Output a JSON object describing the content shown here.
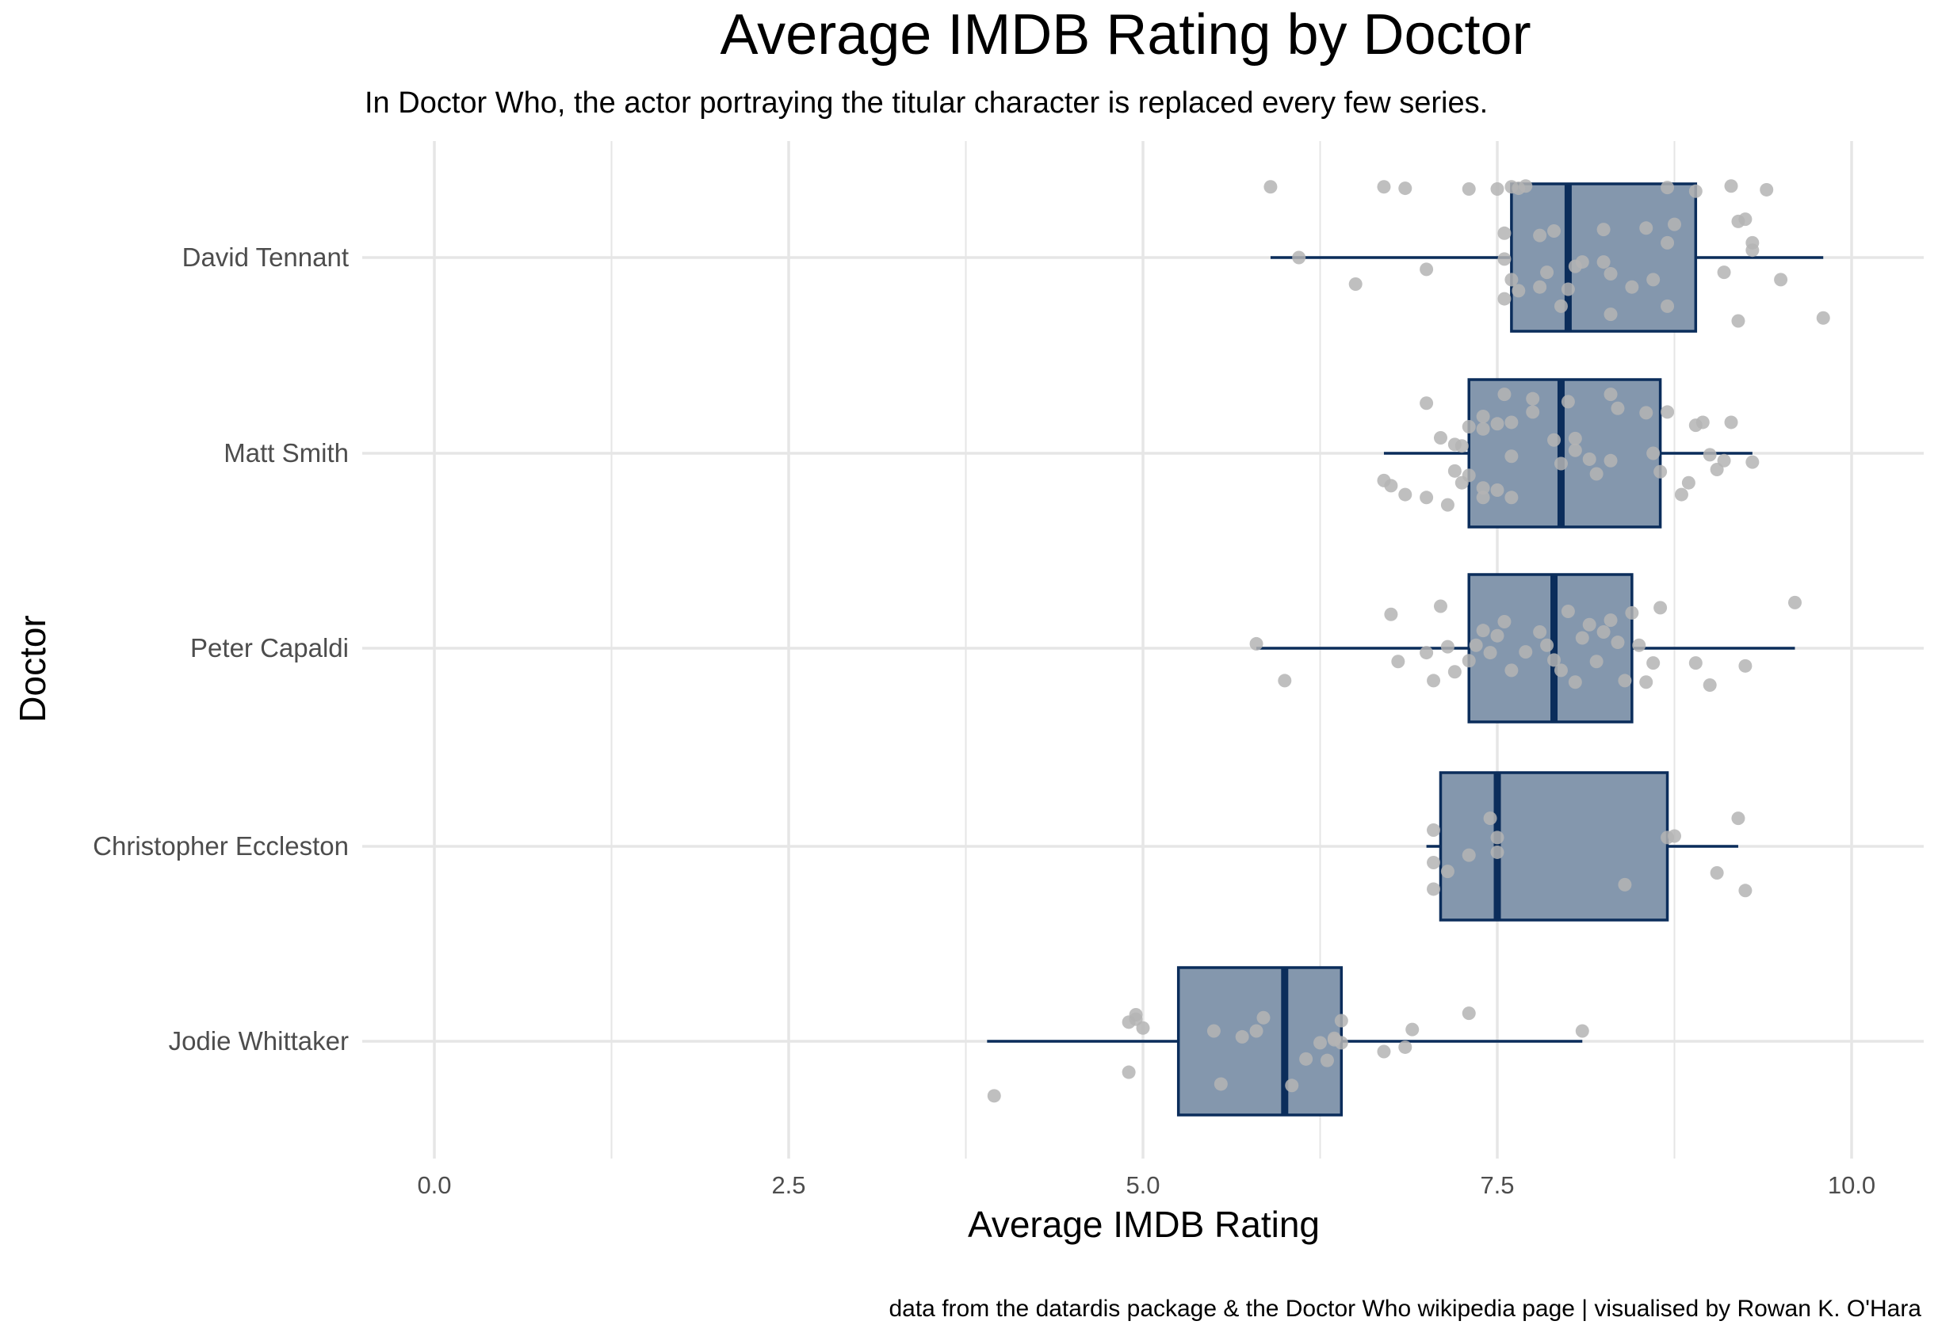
{
  "chart_data": {
    "type": "boxplot",
    "title": "Average IMDB Rating by Doctor",
    "subtitle": "In Doctor Who, the actor portraying the titular character is replaced every few series.",
    "caption": "data from the datardis package & the Doctor Who wikipedia page | visualised by Rowan K. O'Hara",
    "xlabel": "Average IMDB Rating",
    "ylabel": "Doctor",
    "xlim": [
      -0.6,
      10.6
    ],
    "x_ticks": [
      0.0,
      2.5,
      5.0,
      7.5,
      10.0
    ],
    "x_tick_labels": [
      "0.0",
      "2.5",
      "5.0",
      "7.5",
      "10.0"
    ],
    "grid": true,
    "colors": {
      "box_fill": "#8497AD",
      "box_line": "#0B2D5B",
      "points": "#B4B4B4",
      "grid": "#E6E6E6"
    },
    "series": [
      {
        "name": "David Tennant",
        "whisker_low": 5.9,
        "q1": 7.6,
        "median": 8.0,
        "q3": 8.9,
        "whisker_high": 9.8,
        "points": [
          [
            5.9,
            0.96
          ],
          [
            6.7,
            0.96
          ],
          [
            6.85,
            0.94
          ],
          [
            7.3,
            0.93
          ],
          [
            7.5,
            0.93
          ],
          [
            7.6,
            0.96
          ],
          [
            7.65,
            0.94
          ],
          [
            7.7,
            0.97
          ],
          [
            8.7,
            0.95
          ],
          [
            8.9,
            0.9
          ],
          [
            9.15,
            0.97
          ],
          [
            9.4,
            0.92
          ],
          [
            9.2,
            0.49
          ],
          [
            9.25,
            0.52
          ],
          [
            8.75,
            0.45
          ],
          [
            8.55,
            0.4
          ],
          [
            8.25,
            0.38
          ],
          [
            7.9,
            0.36
          ],
          [
            7.55,
            0.33
          ],
          [
            7.8,
            0.3
          ],
          [
            8.7,
            0.2
          ],
          [
            9.3,
            0.2
          ],
          [
            9.3,
            0.1
          ],
          [
            6.1,
            0.0
          ],
          [
            6.5,
            -0.36
          ],
          [
            7.0,
            -0.16
          ],
          [
            7.55,
            -0.02
          ],
          [
            7.6,
            -0.3
          ],
          [
            7.55,
            -0.56
          ],
          [
            7.8,
            -0.4
          ],
          [
            8.25,
            -0.06
          ],
          [
            8.3,
            -0.22
          ],
          [
            8.45,
            -0.4
          ],
          [
            8.6,
            -0.3
          ],
          [
            9.1,
            -0.2
          ],
          [
            9.5,
            -0.3
          ],
          [
            9.8,
            -0.82
          ],
          [
            9.2,
            -0.86
          ],
          [
            8.3,
            -0.77
          ],
          [
            8.0,
            -0.43
          ],
          [
            8.7,
            -0.66
          ],
          [
            8.05,
            -0.12
          ],
          [
            7.95,
            -0.66
          ],
          [
            8.1,
            -0.06
          ],
          [
            7.85,
            -0.2
          ],
          [
            7.65,
            -0.45
          ]
        ]
      },
      {
        "name": "Matt Smith",
        "whisker_low": 6.7,
        "q1": 7.3,
        "median": 7.95,
        "q3": 8.65,
        "whisker_high": 9.3,
        "points": [
          [
            7.0,
            0.68
          ],
          [
            7.55,
            0.8
          ],
          [
            7.75,
            0.74
          ],
          [
            8.3,
            0.8
          ],
          [
            8.35,
            0.61
          ],
          [
            8.55,
            0.55
          ],
          [
            8.7,
            0.56
          ],
          [
            8.9,
            0.38
          ],
          [
            8.95,
            0.42
          ],
          [
            9.15,
            0.42
          ],
          [
            7.1,
            0.21
          ],
          [
            7.3,
            0.36
          ],
          [
            7.4,
            0.33
          ],
          [
            7.5,
            0.4
          ],
          [
            7.6,
            0.42
          ],
          [
            7.25,
            0.1
          ],
          [
            7.75,
            0.56
          ],
          [
            7.9,
            0.18
          ],
          [
            8.05,
            0.2
          ],
          [
            7.4,
            0.5
          ],
          [
            7.2,
            0.12
          ],
          [
            8.0,
            0.7
          ],
          [
            8.05,
            0.04
          ],
          [
            7.6,
            -0.04
          ],
          [
            8.15,
            -0.08
          ],
          [
            8.3,
            -0.1
          ],
          [
            8.6,
            0.0
          ],
          [
            8.65,
            -0.25
          ],
          [
            9.0,
            -0.02
          ],
          [
            9.1,
            -0.1
          ],
          [
            9.3,
            -0.12
          ],
          [
            9.05,
            -0.22
          ],
          [
            8.85,
            -0.4
          ],
          [
            8.2,
            -0.28
          ],
          [
            7.95,
            -0.14
          ],
          [
            7.2,
            -0.24
          ],
          [
            7.3,
            -0.3
          ],
          [
            7.25,
            -0.4
          ],
          [
            7.4,
            -0.47
          ],
          [
            7.5,
            -0.5
          ],
          [
            7.0,
            -0.6
          ],
          [
            7.4,
            -0.6
          ],
          [
            6.7,
            -0.37
          ],
          [
            6.75,
            -0.44
          ],
          [
            6.85,
            -0.56
          ],
          [
            8.8,
            -0.56
          ],
          [
            7.15,
            -0.7
          ],
          [
            7.6,
            -0.6
          ]
        ]
      },
      {
        "name": "Peter Capaldi",
        "whisker_low": 5.8,
        "q1": 7.3,
        "median": 7.9,
        "q3": 8.45,
        "whisker_high": 9.6,
        "points": [
          [
            5.8,
            0.06
          ],
          [
            6.0,
            -0.44
          ],
          [
            6.75,
            0.46
          ],
          [
            6.8,
            -0.18
          ],
          [
            7.0,
            -0.06
          ],
          [
            7.05,
            -0.44
          ],
          [
            7.1,
            0.57
          ],
          [
            7.15,
            0.02
          ],
          [
            7.2,
            -0.32
          ],
          [
            7.3,
            -0.17
          ],
          [
            7.35,
            0.04
          ],
          [
            7.4,
            0.24
          ],
          [
            7.45,
            -0.06
          ],
          [
            7.5,
            0.17
          ],
          [
            7.55,
            0.36
          ],
          [
            7.6,
            -0.3
          ],
          [
            7.7,
            -0.05
          ],
          [
            7.8,
            0.22
          ],
          [
            7.85,
            0.04
          ],
          [
            7.9,
            -0.16
          ],
          [
            8.0,
            0.5
          ],
          [
            8.05,
            -0.46
          ],
          [
            8.1,
            0.14
          ],
          [
            8.15,
            0.32
          ],
          [
            8.2,
            -0.18
          ],
          [
            8.25,
            0.22
          ],
          [
            8.35,
            0.08
          ],
          [
            8.4,
            -0.44
          ],
          [
            8.45,
            0.48
          ],
          [
            8.5,
            0.04
          ],
          [
            8.55,
            -0.46
          ],
          [
            8.65,
            0.55
          ],
          [
            8.6,
            -0.2
          ],
          [
            8.9,
            -0.2
          ],
          [
            9.0,
            -0.5
          ],
          [
            9.25,
            -0.24
          ],
          [
            9.6,
            0.62
          ],
          [
            8.3,
            0.38
          ],
          [
            7.95,
            -0.3
          ]
        ]
      },
      {
        "name": "Christopher Eccleston",
        "whisker_low": 7.0,
        "q1": 7.1,
        "median": 7.5,
        "q3": 8.7,
        "whisker_high": 9.2,
        "points": [
          [
            9.2,
            0.38
          ],
          [
            7.45,
            0.38
          ],
          [
            7.05,
            0.22
          ],
          [
            7.5,
            0.12
          ],
          [
            8.75,
            0.14
          ],
          [
            8.7,
            0.12
          ],
          [
            7.5,
            -0.08
          ],
          [
            7.05,
            -0.22
          ],
          [
            7.15,
            -0.34
          ],
          [
            7.05,
            -0.58
          ],
          [
            8.4,
            -0.52
          ],
          [
            9.05,
            -0.36
          ],
          [
            9.25,
            -0.6
          ],
          [
            7.3,
            -0.12
          ]
        ]
      },
      {
        "name": "Jodie Whittaker",
        "whisker_low": 3.9,
        "q1": 5.25,
        "median": 6.0,
        "q3": 6.4,
        "whisker_high": 8.1,
        "points": [
          [
            3.95,
            -0.74
          ],
          [
            4.9,
            -0.42
          ],
          [
            4.9,
            0.26
          ],
          [
            4.95,
            0.3
          ],
          [
            4.95,
            0.36
          ],
          [
            5.0,
            0.18
          ],
          [
            5.5,
            0.14
          ],
          [
            5.55,
            -0.58
          ],
          [
            5.7,
            0.06
          ],
          [
            5.8,
            0.14
          ],
          [
            5.85,
            0.32
          ],
          [
            6.05,
            -0.6
          ],
          [
            6.15,
            -0.24
          ],
          [
            6.3,
            -0.26
          ],
          [
            6.35,
            0.04
          ],
          [
            6.35,
            0.02
          ],
          [
            6.4,
            0.28
          ],
          [
            6.4,
            -0.02
          ],
          [
            6.7,
            -0.14
          ],
          [
            6.9,
            0.16
          ],
          [
            6.85,
            -0.08
          ],
          [
            7.3,
            0.38
          ],
          [
            8.1,
            0.14
          ],
          [
            6.25,
            -0.02
          ]
        ]
      }
    ]
  }
}
